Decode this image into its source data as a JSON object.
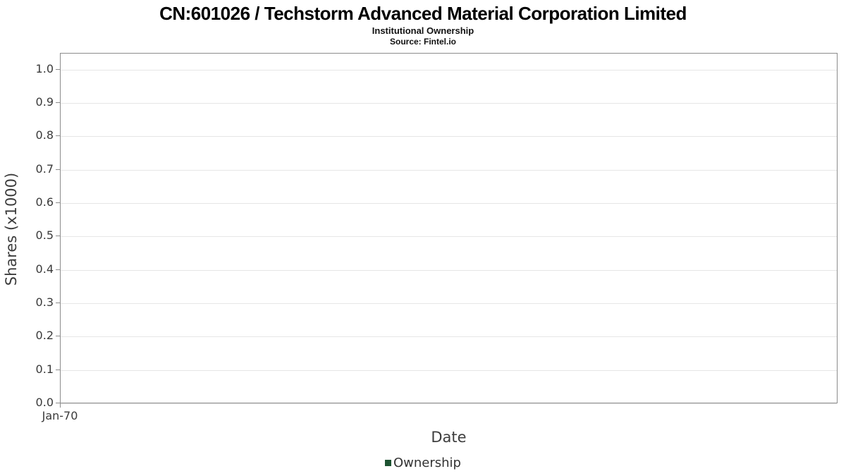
{
  "chart_data": {
    "type": "line",
    "title": "CN:601026 / Techstorm Advanced Material Corporation Limited",
    "subtitle": "Institutional Ownership",
    "source": "Source: Fintel.io",
    "xlabel": "Date",
    "ylabel": "Shares (x1000)",
    "x_ticks": [
      "Jan-70"
    ],
    "y_ticks": [
      "0.0",
      "0.1",
      "0.2",
      "0.3",
      "0.4",
      "0.5",
      "0.6",
      "0.7",
      "0.8",
      "0.9",
      "1.0"
    ],
    "ylim": [
      0,
      1.05
    ],
    "grid": true,
    "legend_position": "bottom-center",
    "series": [
      {
        "name": "Ownership",
        "color": "#1d5331",
        "x": [],
        "values": []
      }
    ]
  }
}
